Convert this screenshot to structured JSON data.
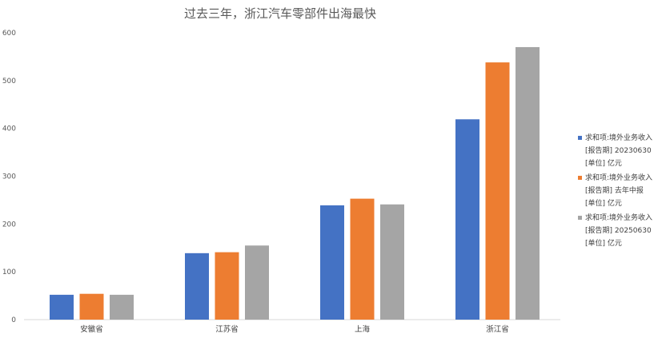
{
  "chart_data": {
    "type": "bar",
    "title": "过去三年，浙江汽车零部件出海最快",
    "categories": [
      "安徽省",
      "江苏省",
      "上海",
      "浙江省"
    ],
    "ylim": [
      0,
      600
    ],
    "yticks": [
      0,
      100,
      200,
      300,
      400,
      500,
      600
    ],
    "grid": false,
    "legend_position": "right",
    "series": [
      {
        "name": "求和项:境外业务收入\n[报告期] 20230630\n[单位] 亿元",
        "color": "#4472C4",
        "values": [
          52,
          139,
          239,
          419
        ]
      },
      {
        "name": "求和项:境外业务收入\n[报告期] 去年中报\n[单位] 亿元",
        "color": "#ED7D31",
        "values": [
          54,
          141,
          253,
          538
        ]
      },
      {
        "name": "求和项:境外业务收入\n[报告期] 20250630\n[单位] 亿元",
        "color": "#A5A5A5",
        "values": [
          52,
          155,
          241,
          570
        ]
      }
    ]
  }
}
